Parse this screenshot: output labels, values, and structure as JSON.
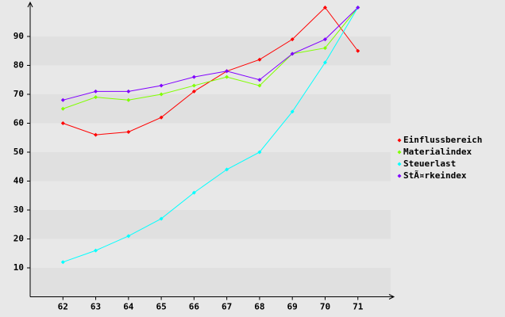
{
  "chart_data": {
    "type": "line",
    "x": [
      62,
      63,
      64,
      65,
      66,
      67,
      68,
      69,
      70,
      71
    ],
    "xlim": [
      61,
      72
    ],
    "xticks": [
      62,
      63,
      64,
      65,
      66,
      67,
      68,
      69,
      70,
      71
    ],
    "ylim": [
      0,
      100
    ],
    "yticks": [
      10,
      20,
      30,
      40,
      50,
      60,
      70,
      80,
      90
    ],
    "grid": true,
    "legend": "right",
    "series": [
      {
        "name": "Einflussbereich",
        "color": "#ff0000",
        "values": [
          60,
          56,
          57,
          62,
          71,
          78,
          82,
          89,
          100,
          85
        ]
      },
      {
        "name": "Materialindex",
        "color": "#80ff00",
        "values": [
          65,
          69,
          68,
          70,
          73,
          76,
          73,
          84,
          86,
          100
        ]
      },
      {
        "name": "Steuerlast",
        "color": "#00ffff",
        "values": [
          12,
          16,
          21,
          27,
          36,
          44,
          50,
          64,
          81,
          100
        ]
      },
      {
        "name": "StÃ¤rkeindex",
        "color": "#8000ff",
        "values": [
          68,
          71,
          71,
          73,
          76,
          78,
          75,
          84,
          89,
          100
        ]
      }
    ]
  }
}
